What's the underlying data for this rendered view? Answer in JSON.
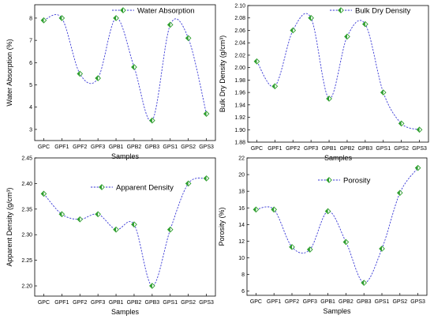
{
  "chart_data": [
    {
      "type": "line",
      "categories": [
        "GPC",
        "GPF1",
        "GPF2",
        "GPF3",
        "GPB1",
        "GPB2",
        "GPB3",
        "GPS1",
        "GPS2",
        "GPS3"
      ],
      "series": [
        {
          "name": "Water Absorption",
          "values": [
            7.9,
            8.0,
            5.5,
            5.3,
            8.0,
            5.8,
            3.4,
            7.7,
            7.1,
            3.7
          ]
        }
      ],
      "xlabel": "Samples",
      "ylabel": "Water Absorption (%)",
      "ylim": [
        2.5,
        8.6
      ],
      "yticks": [
        3,
        4,
        5,
        6,
        7,
        8
      ],
      "ytick_labels": [
        "3",
        "4",
        "5",
        "6",
        "7",
        "8"
      ],
      "legend": "top-right",
      "colors": {
        "marker": "#2e9e2e",
        "line": "#3a3ad6"
      }
    },
    {
      "type": "line",
      "categories": [
        "GPC",
        "GPF1",
        "GPF2",
        "GPF3",
        "GPB1",
        "GPB2",
        "GPB3",
        "GPS1",
        "GPS2",
        "GPS3"
      ],
      "series": [
        {
          "name": "Bulk Dry Density",
          "values": [
            2.01,
            1.97,
            2.06,
            2.08,
            1.95,
            2.05,
            2.07,
            1.96,
            1.91,
            1.9
          ]
        }
      ],
      "xlabel": "Samples",
      "ylabel": "Bulk Dry Density (g/cm³)",
      "ylim": [
        1.88,
        2.1
      ],
      "yticks": [
        1.88,
        1.9,
        1.92,
        1.94,
        1.96,
        1.98,
        2.0,
        2.02,
        2.04,
        2.06,
        2.08,
        2.1
      ],
      "ytick_labels": [
        "1.88",
        "1.90",
        "1.92",
        "1.94",
        "1.96",
        "1.98",
        "2.00",
        "2.02",
        "2.04",
        "2.06",
        "2.08",
        "2.10"
      ],
      "legend": "top-right",
      "colors": {
        "marker": "#2e9e2e",
        "line": "#3a3ad6"
      }
    },
    {
      "type": "line",
      "categories": [
        "GPC",
        "GPF1",
        "GPF2",
        "GPF3",
        "GPB1",
        "GPB2",
        "GPB3",
        "GPS1",
        "GPS2",
        "GPS3"
      ],
      "series": [
        {
          "name": "Apparent Density",
          "values": [
            2.38,
            2.34,
            2.33,
            2.34,
            2.31,
            2.32,
            2.2,
            2.31,
            2.4,
            2.41
          ]
        }
      ],
      "xlabel": "Samples",
      "ylabel": "Apparent Density (g/cm³)",
      "ylim": [
        2.18,
        2.45
      ],
      "yticks": [
        2.2,
        2.25,
        2.3,
        2.35,
        2.4,
        2.45
      ],
      "ytick_labels": [
        "2.20",
        "2.25",
        "2.30",
        "2.35",
        "2.40",
        "2.45"
      ],
      "legend": "top-right",
      "colors": {
        "marker": "#2e9e2e",
        "line": "#3a3ad6"
      }
    },
    {
      "type": "line",
      "categories": [
        "GPC",
        "GPF1",
        "GPF2",
        "GPF3",
        "GPB1",
        "GPB2",
        "GPB3",
        "GPS1",
        "GPS2",
        "GPS3"
      ],
      "series": [
        {
          "name": "Porosity",
          "values": [
            15.8,
            15.8,
            11.3,
            11.0,
            15.6,
            11.9,
            7.0,
            11.1,
            17.8,
            20.8
          ]
        }
      ],
      "xlabel": "Samples",
      "ylabel": "Porosity (%)",
      "ylim": [
        5.5,
        22
      ],
      "yticks": [
        6,
        8,
        10,
        12,
        14,
        16,
        18,
        20,
        22
      ],
      "ytick_labels": [
        "6",
        "8",
        "10",
        "12",
        "14",
        "16",
        "18",
        "20",
        "22"
      ],
      "legend": "top-right",
      "colors": {
        "marker": "#2e9e2e",
        "line": "#3a3ad6"
      }
    }
  ]
}
